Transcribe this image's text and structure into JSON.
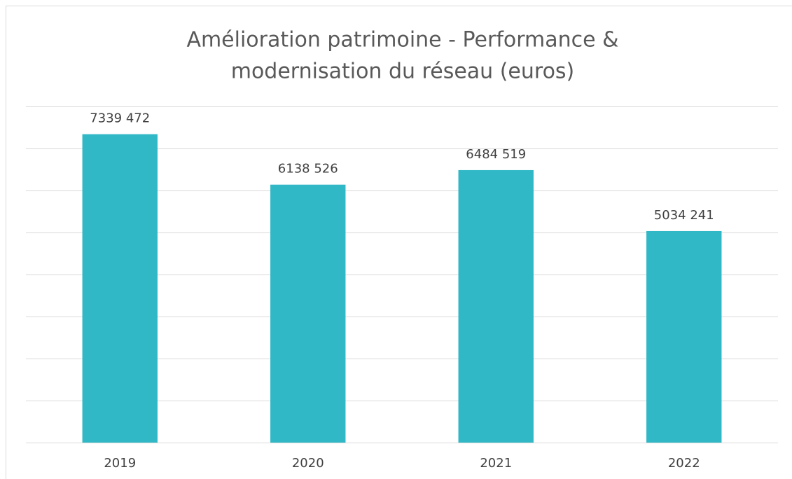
{
  "chart_data": {
    "type": "bar",
    "title": [
      "Amélioration patrimoine - Performance &",
      "modernisation du réseau (euros)"
    ],
    "categories": [
      "2019",
      "2020",
      "2021",
      "2022"
    ],
    "values": [
      7339472,
      6138526,
      6484519,
      5034241
    ],
    "value_labels": [
      "7339 472",
      "6138 526",
      "6484 519",
      "5034 241"
    ],
    "color": "#31b8c6",
    "ylim": [
      0,
      8000000
    ],
    "yticks": [
      0,
      1000000,
      2000000,
      3000000,
      4000000,
      5000000,
      6000000,
      7000000,
      8000000
    ],
    "grid": true
  }
}
